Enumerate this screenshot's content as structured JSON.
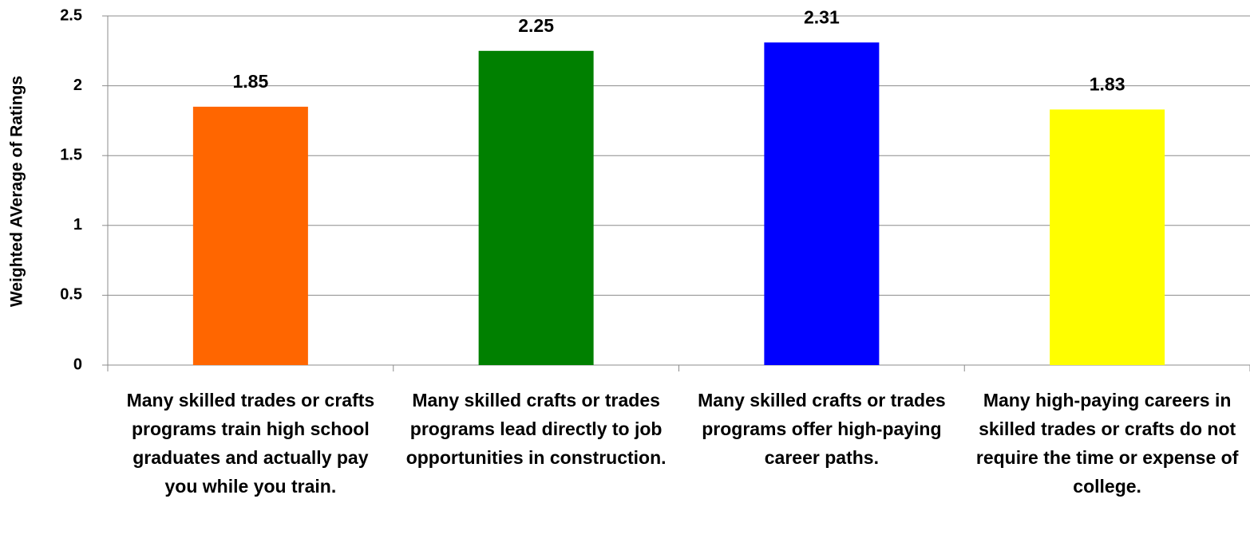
{
  "chart_data": {
    "type": "bar",
    "y_label": "Weighted AVerage of Ratings",
    "categories": [
      "Many skilled trades or crafts programs train high school graduates and actually pay you while you train.",
      "Many skilled crafts or trades programs lead directly to job opportunities in construction.",
      "Many skilled crafts or trades programs offer high-paying career paths.",
      "Many high-paying careers in skilled trades or crafts do not require the time or expense of college."
    ],
    "values": [
      1.85,
      2.25,
      2.31,
      1.83
    ],
    "colors": [
      "#ff6600",
      "#008000",
      "#0000ff",
      "#ffff00"
    ],
    "ylim": [
      0,
      2.5
    ],
    "yticks": [
      0,
      0.5,
      1,
      1.5,
      2,
      2.5
    ],
    "grid": true
  }
}
